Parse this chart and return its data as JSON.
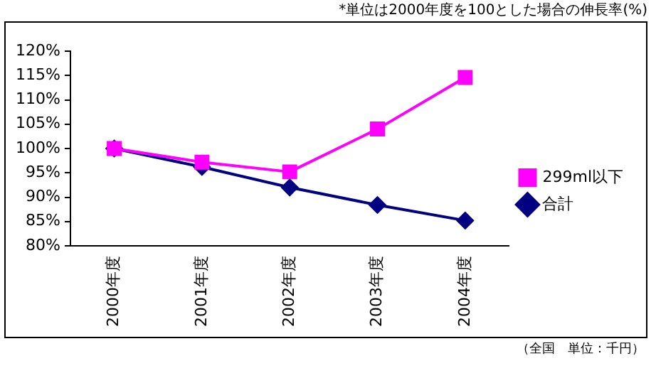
{
  "chart_data": {
    "type": "line",
    "categories": [
      "2000年度",
      "2001年度",
      "2002年度",
      "2003年度",
      "2004年度"
    ],
    "series": [
      {
        "name": "合計",
        "color": "#000080",
        "marker": "diamond",
        "values": [
          100,
          96.2,
          92,
          88.4,
          85.2
        ]
      },
      {
        "name": "299ml以下",
        "color": "#ff00ff",
        "marker": "square",
        "values": [
          100,
          97.2,
          95.2,
          104,
          114.6
        ]
      }
    ],
    "ylim": [
      80,
      120
    ],
    "yticks": [
      {
        "value": 80,
        "label": "80%"
      },
      {
        "value": 85,
        "label": "85%"
      },
      {
        "value": 90,
        "label": "90%"
      },
      {
        "value": 95,
        "label": "95%"
      },
      {
        "value": 100,
        "label": "100%"
      },
      {
        "value": 105,
        "label": "105%"
      },
      {
        "value": 110,
        "label": "110%"
      },
      {
        "value": 115,
        "label": "115%"
      },
      {
        "value": 120,
        "label": "120%"
      }
    ],
    "grid": false,
    "legend": "right",
    "line_style": "solid",
    "annotations": [
      "*単位は2000年度を100とした場合の伸長率(%)",
      "（全国　単位：千円）"
    ]
  }
}
